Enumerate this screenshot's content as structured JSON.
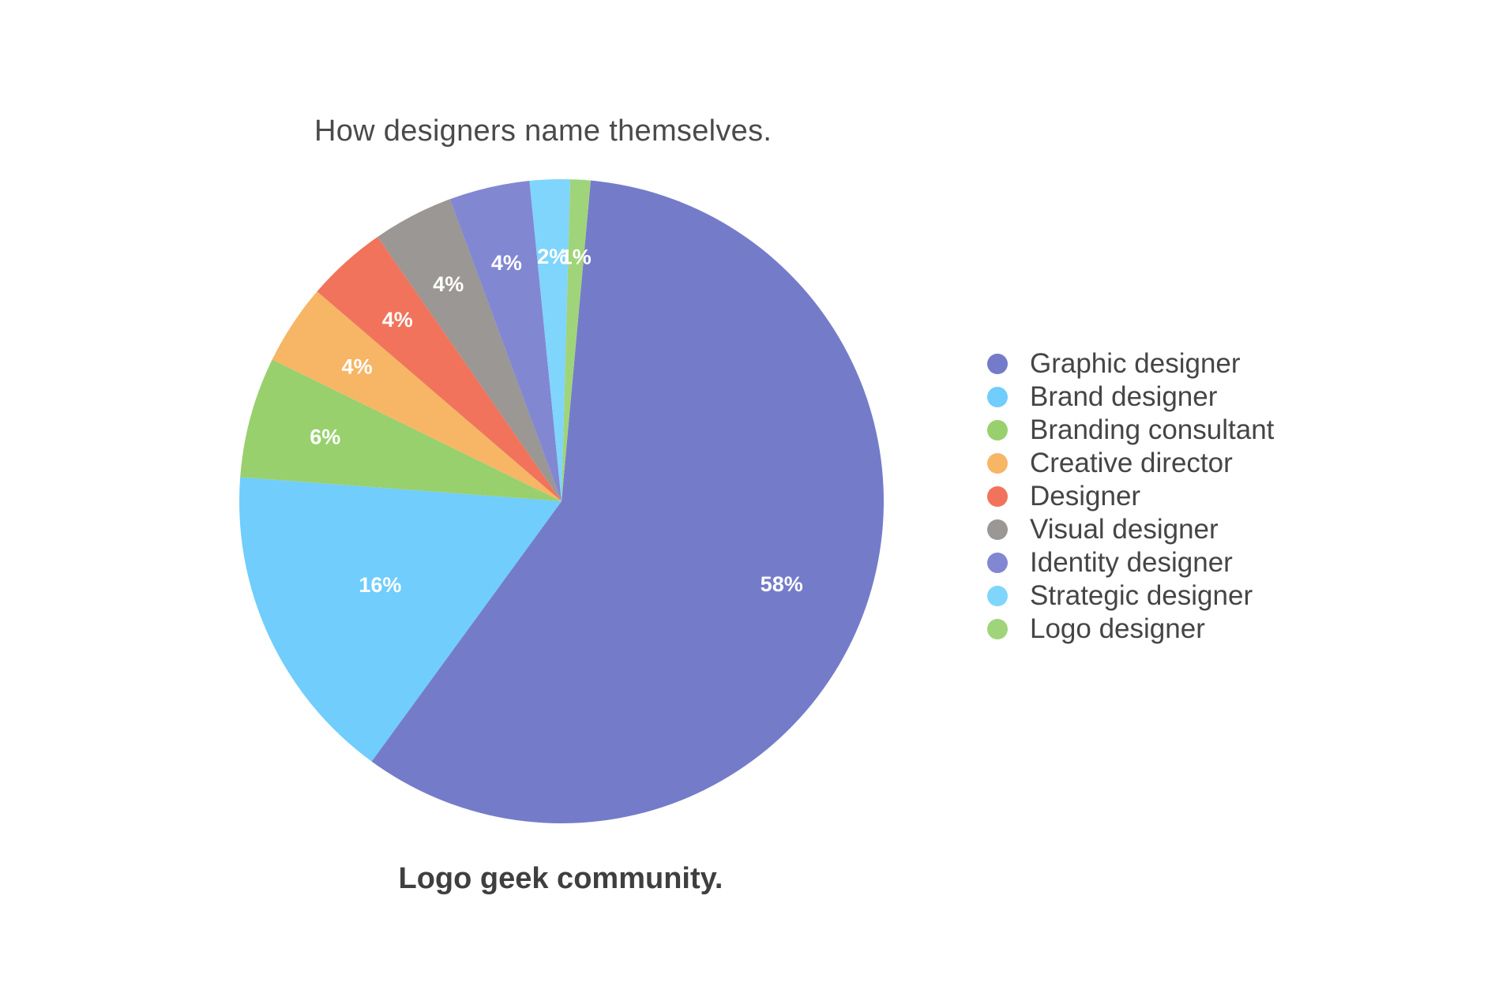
{
  "chart_data": {
    "type": "pie",
    "title": "How designers name themselves.",
    "subtitle": "Logo geek community.",
    "legend_position": "right",
    "slices": [
      {
        "name": "Graphic designer",
        "value": 58,
        "label": "58%",
        "color": "#747cc9"
      },
      {
        "name": "Brand designer",
        "value": 16,
        "label": "16%",
        "color": "#70cdfc"
      },
      {
        "name": "Branding consultant",
        "value": 6,
        "label": "6%",
        "color": "#98d06e"
      },
      {
        "name": "Creative director",
        "value": 4,
        "label": "4%",
        "color": "#f7b566"
      },
      {
        "name": "Designer",
        "value": 4,
        "label": "4%",
        "color": "#f1735b"
      },
      {
        "name": "Visual designer",
        "value": 4,
        "label": "4%",
        "color": "#9a9794"
      },
      {
        "name": "Identity designer",
        "value": 4,
        "label": "4%",
        "color": "#8287d2"
      },
      {
        "name": "Strategic designer",
        "value": 2,
        "label": "2%",
        "color": "#7fd5fb"
      },
      {
        "name": "Logo designer",
        "value": 1,
        "label": "1%",
        "color": "#a0d47a"
      }
    ]
  }
}
